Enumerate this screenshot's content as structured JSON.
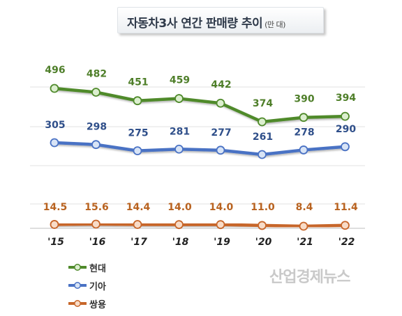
{
  "title": "자동차3사 연간 판매량 추이",
  "unit": "(만 대)",
  "watermark": "산업경제뉴스",
  "chart_data": {
    "type": "line",
    "title": "자동차3사 연간 판매량 추이",
    "unit": "(만 대)",
    "categories": [
      "'15",
      "'16",
      "'17",
      "'18",
      "'19",
      "'20",
      "'21",
      "'22"
    ],
    "series": [
      {
        "name": "현대",
        "color": "#4f8a2b",
        "label_color": "#4f7f2a",
        "marker_fill": "#dcefcf",
        "values": [
          496,
          482,
          451,
          459,
          442,
          374,
          390,
          394
        ]
      },
      {
        "name": "기아",
        "color": "#4a72c4",
        "label_color": "#2f4f8a",
        "marker_fill": "#d8e4f6",
        "values": [
          305,
          298,
          275,
          281,
          277,
          261,
          278,
          290
        ]
      },
      {
        "name": "쌍용",
        "color": "#c7662a",
        "label_color": "#b8621f",
        "marker_fill": "#f8dcc8",
        "values": [
          14.5,
          15.6,
          14.4,
          14.0,
          14.0,
          11.0,
          8.4,
          11.4
        ],
        "labels": [
          "14.5",
          "15.6",
          "14.4",
          "14.0",
          "14.0",
          "11.0",
          "8.4",
          "11.4"
        ]
      }
    ],
    "grid": true,
    "legend_position": "bottom-left"
  }
}
